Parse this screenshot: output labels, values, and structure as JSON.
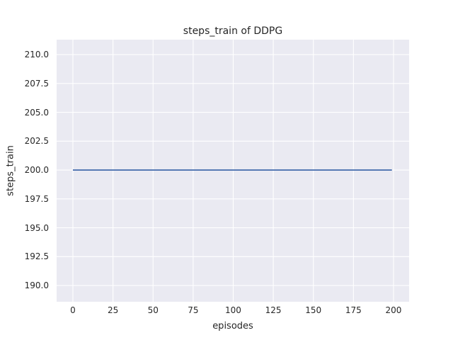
{
  "chart_data": {
    "type": "line",
    "title": "steps_train of DDPG",
    "xlabel": "episodes",
    "ylabel": "steps_train",
    "xlim": [
      -10.15,
      209.72
    ],
    "ylim": [
      188.59,
      211.29
    ],
    "xticks": [
      0,
      25,
      50,
      75,
      100,
      125,
      150,
      175,
      200
    ],
    "xticklabels": [
      "0",
      "25",
      "50",
      "75",
      "100",
      "125",
      "150",
      "175",
      "200"
    ],
    "yticks": [
      190.0,
      192.5,
      195.0,
      197.5,
      200.0,
      202.5,
      205.0,
      207.5,
      210.0
    ],
    "yticklabels": [
      "190.0",
      "192.5",
      "195.0",
      "197.5",
      "200.0",
      "202.5",
      "205.0",
      "207.5",
      "210.0"
    ],
    "grid": true,
    "legend": "none",
    "series": [
      {
        "name": "steps_train",
        "x": [
          0,
          199
        ],
        "y": [
          200,
          200
        ],
        "color": "#4c72b0",
        "description": "constant value 200 for every episode from 0 to 199"
      }
    ],
    "style": {
      "figure_bg": "#ffffff",
      "plot_bg": "#eaeaf2",
      "grid_color": "#ffffff",
      "text_color": "#262626",
      "line_width": 1.9,
      "grid_width": 1.1
    }
  }
}
